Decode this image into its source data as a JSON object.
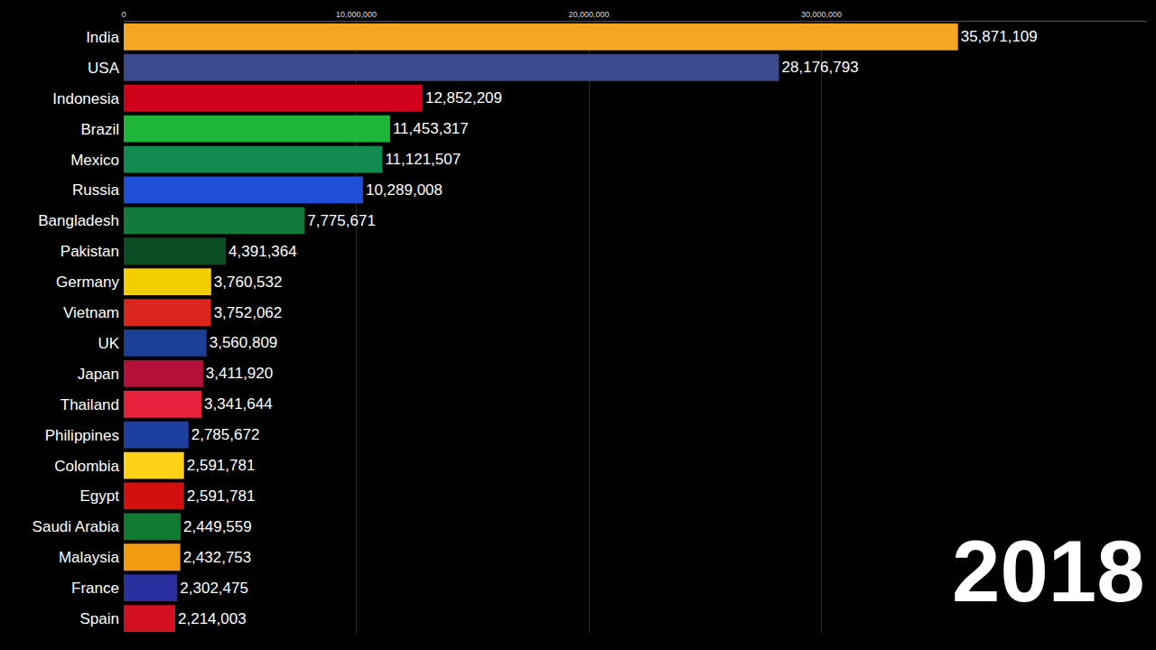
{
  "chart_data": {
    "type": "bar",
    "orientation": "horizontal",
    "categories": [
      "India",
      "USA",
      "Indonesia",
      "Brazil",
      "Mexico",
      "Russia",
      "Bangladesh",
      "Pakistan",
      "Germany",
      "Vietnam",
      "UK",
      "Japan",
      "Thailand",
      "Philippines",
      "Colombia",
      "Egypt",
      "Saudi Arabia",
      "Malaysia",
      "France",
      "Spain"
    ],
    "values": [
      35871109,
      28176793,
      12852209,
      11453317,
      11121507,
      10289008,
      7775671,
      4391364,
      3760532,
      3752062,
      3560809,
      3411920,
      3341644,
      2785672,
      2591781,
      2591781,
      2449559,
      2432753,
      2302475,
      2214003
    ],
    "value_labels": [
      "35,871,109",
      "28,176,793",
      "12,852,209",
      "11,453,317",
      "11,121,507",
      "10,289,008",
      "7,775,671",
      "4,391,364",
      "3,760,532",
      "3,752,062",
      "3,560,809",
      "3,411,920",
      "3,341,644",
      "2,785,672",
      "2,591,781",
      "2,591,781",
      "2,449,559",
      "2,432,753",
      "2,302,475",
      "2,214,003"
    ],
    "data_labels": true,
    "colors": [
      "#f5a623",
      "#3b4a8c",
      "#d0021b",
      "#1fb53a",
      "#138a4f",
      "#1f4fd6",
      "#137a3e",
      "#0b4d22",
      "#f2cd00",
      "#da251d",
      "#1a3f95",
      "#b5103a",
      "#e8223c",
      "#1c3fa0",
      "#fcd116",
      "#d4100f",
      "#0f7a32",
      "#f39c12",
      "#2a2fa0",
      "#d21021"
    ],
    "xlim": [
      0,
      44000000
    ],
    "xticks": [
      0,
      {
        "value": 10000000,
        "label": "10,000,000"
      },
      {
        "value": 20000000,
        "label": "20,000,000"
      },
      {
        "value": 30000000,
        "label": "30,000,000"
      }
    ],
    "grid": true,
    "annotations": [
      "2018"
    ]
  }
}
